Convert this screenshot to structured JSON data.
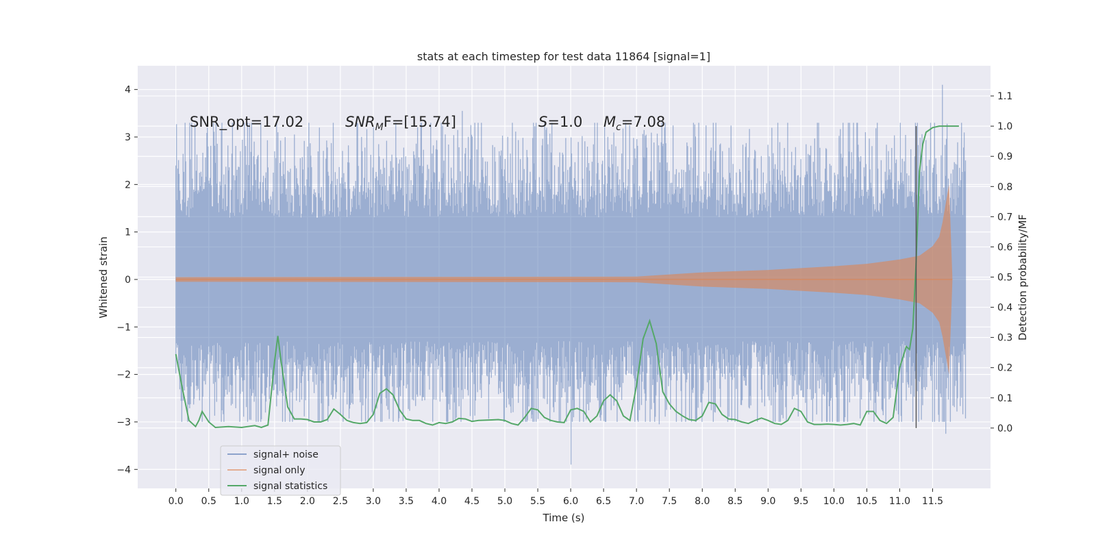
{
  "chart_data": {
    "type": "line",
    "title": "stats at each timestep for test data 11864 [signal=1]",
    "xlabel": "Time (s)",
    "ylabel": "Whitened strain",
    "ylabel_right": "Detection probability/MF",
    "xlim": [
      -0.58,
      12.38
    ],
    "ylim": [
      -4.4,
      4.5
    ],
    "ylim_right": [
      -0.2,
      1.2
    ],
    "x_ticks": [
      "0.0",
      "0.5",
      "1.0",
      "1.5",
      "2.0",
      "2.5",
      "3.0",
      "3.5",
      "4.0",
      "4.5",
      "5.0",
      "5.5",
      "6.0",
      "6.5",
      "7.0",
      "7.5",
      "8.0",
      "8.5",
      "9.0",
      "9.5",
      "10.0",
      "10.5",
      "11.0",
      "11.5"
    ],
    "y_ticks": [
      "−4",
      "−3",
      "−2",
      "−1",
      "0",
      "1",
      "2",
      "3",
      "4"
    ],
    "y_ticks_right": [
      "0.0",
      "0.1",
      "0.2",
      "0.3",
      "0.4",
      "0.5",
      "0.6",
      "0.7",
      "0.8",
      "0.9",
      "1.0",
      "1.1"
    ],
    "annotations": {
      "snr_opt": "SNR_opt=17.02",
      "snr_mf_var": "SNR",
      "snr_mf_sub": "M",
      "snr_mf_rest": "F=[15.74]",
      "s_var": "S",
      "s_rest": "=1.0",
      "mc_var": "M",
      "mc_sub": "c",
      "mc_rest": "=7.08"
    },
    "vline_x": 11.25,
    "series": [
      {
        "name": "signal+ noise",
        "color": "#4c72b0",
        "time_range": [
          0.0,
          12.0
        ],
        "noise_sigma": 1.0,
        "peaks": [
          [
            0.0,
            2.4
          ],
          [
            4.35,
            3.55
          ],
          [
            6.0,
            -3.9
          ],
          [
            11.65,
            4.1
          ],
          [
            11.7,
            -3.25
          ],
          [
            7.35,
            -3.05
          ],
          [
            1.55,
            3.1
          ]
        ]
      },
      {
        "name": "signal only",
        "color": "#dd8452",
        "time_range": [
          0.0,
          11.8
        ],
        "envelope": {
          "t": [
            0.0,
            7.0,
            8.0,
            9.0,
            10.0,
            10.5,
            11.0,
            11.3,
            11.5,
            11.6,
            11.65,
            11.7,
            11.75,
            11.8
          ],
          "amp": [
            0.05,
            0.06,
            0.15,
            0.2,
            0.28,
            0.33,
            0.42,
            0.5,
            0.7,
            0.9,
            1.2,
            1.6,
            2.0,
            0.05
          ]
        }
      },
      {
        "name": "signal statistics",
        "color": "#55a868",
        "x": [
          0.0,
          0.1,
          0.2,
          0.3,
          0.35,
          0.4,
          0.5,
          0.6,
          0.8,
          1.0,
          1.2,
          1.3,
          1.4,
          1.5,
          1.55,
          1.6,
          1.7,
          1.8,
          1.9,
          2.0,
          2.1,
          2.2,
          2.3,
          2.4,
          2.5,
          2.6,
          2.7,
          2.8,
          2.9,
          3.0,
          3.1,
          3.2,
          3.3,
          3.4,
          3.5,
          3.6,
          3.7,
          3.8,
          3.9,
          4.0,
          4.1,
          4.2,
          4.3,
          4.4,
          4.5,
          4.6,
          4.7,
          4.8,
          4.9,
          5.0,
          5.1,
          5.2,
          5.3,
          5.4,
          5.5,
          5.6,
          5.7,
          5.8,
          5.9,
          6.0,
          6.1,
          6.2,
          6.3,
          6.4,
          6.5,
          6.6,
          6.7,
          6.8,
          6.9,
          7.0,
          7.1,
          7.2,
          7.3,
          7.4,
          7.5,
          7.6,
          7.7,
          7.8,
          7.9,
          8.0,
          8.1,
          8.2,
          8.3,
          8.4,
          8.5,
          8.6,
          8.7,
          8.8,
          8.9,
          9.0,
          9.1,
          9.2,
          9.3,
          9.4,
          9.5,
          9.6,
          9.7,
          9.8,
          9.9,
          10.0,
          10.1,
          10.2,
          10.3,
          10.4,
          10.5,
          10.6,
          10.7,
          10.8,
          10.9,
          11.0,
          11.1,
          11.15,
          11.2,
          11.25,
          11.3,
          11.35,
          11.4,
          11.5,
          11.6,
          11.7,
          11.8,
          11.9
        ],
        "y": [
          0.245,
          0.13,
          0.025,
          0.005,
          0.025,
          0.055,
          0.02,
          0.002,
          0.005,
          0.002,
          0.008,
          0.002,
          0.01,
          0.22,
          0.305,
          0.22,
          0.07,
          0.03,
          0.03,
          0.028,
          0.02,
          0.02,
          0.028,
          0.063,
          0.045,
          0.025,
          0.018,
          0.015,
          0.018,
          0.045,
          0.115,
          0.13,
          0.11,
          0.06,
          0.03,
          0.025,
          0.025,
          0.015,
          0.01,
          0.018,
          0.015,
          0.02,
          0.032,
          0.03,
          0.022,
          0.025,
          0.026,
          0.027,
          0.028,
          0.025,
          0.015,
          0.01,
          0.035,
          0.065,
          0.06,
          0.035,
          0.025,
          0.02,
          0.018,
          0.06,
          0.065,
          0.055,
          0.02,
          0.04,
          0.09,
          0.11,
          0.09,
          0.04,
          0.025,
          0.14,
          0.295,
          0.355,
          0.28,
          0.12,
          0.08,
          0.055,
          0.04,
          0.028,
          0.025,
          0.04,
          0.085,
          0.08,
          0.045,
          0.03,
          0.028,
          0.02,
          0.015,
          0.025,
          0.033,
          0.025,
          0.015,
          0.012,
          0.025,
          0.065,
          0.055,
          0.02,
          0.012,
          0.012,
          0.013,
          0.012,
          0.01,
          0.012,
          0.015,
          0.01,
          0.055,
          0.055,
          0.025,
          0.015,
          0.035,
          0.2,
          0.27,
          0.26,
          0.33,
          0.55,
          0.85,
          0.94,
          0.98,
          0.995,
          1.0,
          1.0,
          1.0,
          1.0
        ]
      }
    ],
    "legend": [
      "signal+ noise",
      "signal only",
      "signal statistics"
    ]
  }
}
